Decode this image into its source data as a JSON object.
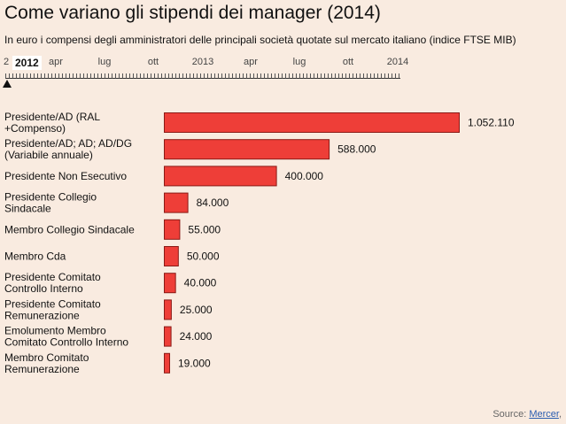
{
  "chart_data": {
    "type": "bar",
    "orientation": "horizontal",
    "title": "Come variano gli stipendi dei manager (2014)",
    "subtitle": "In euro i compensi degli amministratori delle principali società quotate sul mercato italiano (indice FTSE MIB)",
    "categories": [
      [
        "Presidente/AD (RAL",
        "+Compenso)"
      ],
      [
        "Presidente/AD; AD; AD/DG",
        "(Variabile annuale)"
      ],
      [
        "Presidente Non Esecutivo"
      ],
      [
        "Presidente Collegio",
        "Sindacale"
      ],
      [
        "Membro Collegio Sindacale"
      ],
      [
        "Membro Cda"
      ],
      [
        "Presidente Comitato",
        "Controllo Interno"
      ],
      [
        "Presidente Comitato",
        "Remunerazione"
      ],
      [
        "Emolumento Membro",
        "Comitato Controllo Interno"
      ],
      [
        "Membro Comitato",
        "Remunerazione"
      ]
    ],
    "values": [
      1052110,
      588000,
      400000,
      84000,
      55000,
      50000,
      40000,
      25000,
      24000,
      19000
    ],
    "value_labels": [
      "1.052.110",
      "588.000",
      "400.000",
      "84.000",
      "55.000",
      "50.000",
      "40.000",
      "25.000",
      "24.000",
      "19.000"
    ],
    "bar_color": "#ee3e38",
    "bar_stroke": "#8a1a16",
    "xlim": [
      0,
      1052110
    ]
  },
  "timeline": {
    "first_label": "2",
    "current": "2012",
    "labels": [
      "apr",
      "lug",
      "ott",
      "2013",
      "apr",
      "lug",
      "ott",
      "2014"
    ]
  },
  "source": {
    "prefix": "Source: ",
    "link": "Mercer",
    "suffix": ","
  }
}
